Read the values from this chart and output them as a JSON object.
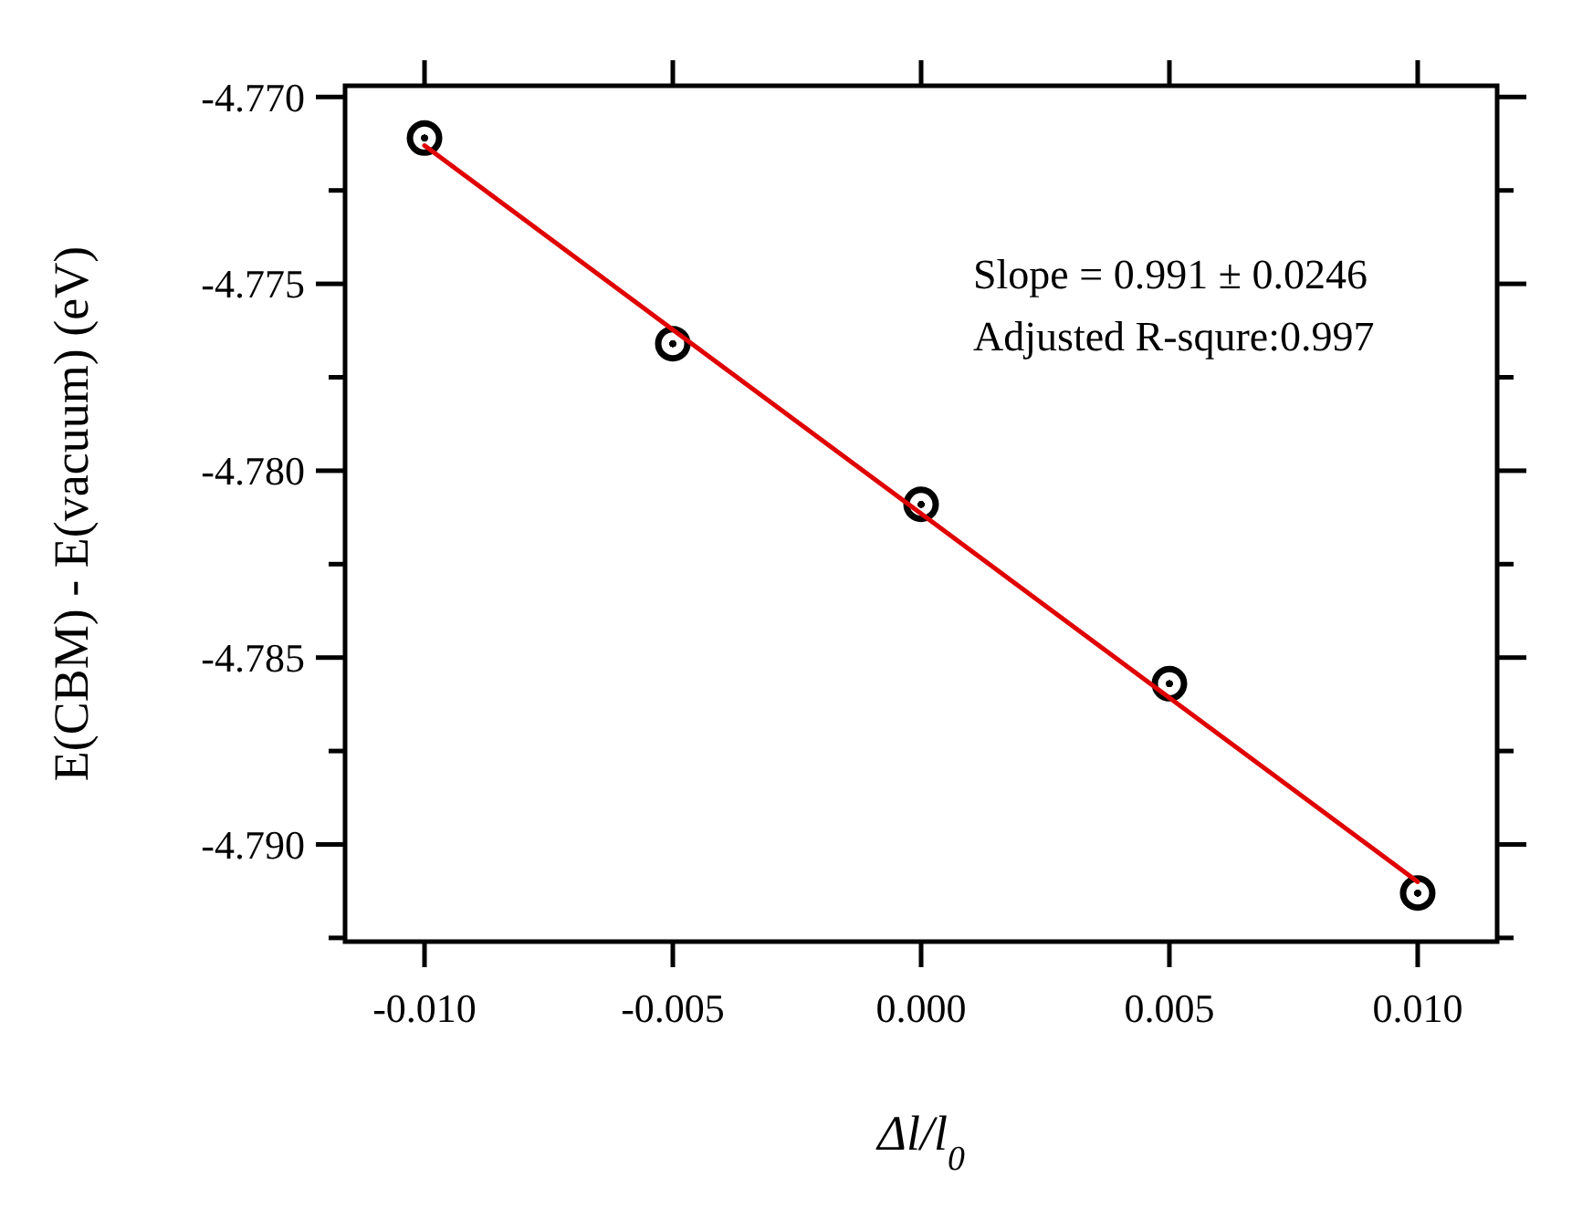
{
  "chart_data": {
    "type": "scatter",
    "xlabel": "Δl/l$_{0}$",
    "ylabel": "E(CBM) - E(vacuum) (eV)",
    "x": [
      -0.01,
      -0.005,
      0,
      0.005,
      0.01
    ],
    "series": [
      {
        "color": "#000000",
        "values": [
          -4.7711,
          -4.7766,
          -4.7809,
          -4.7857,
          -4.7913
        ]
      },
      {
        "type": "line",
        "marker": "none",
        "color": "#e00000",
        "x": [
          -0.01,
          0.01
        ],
        "values": [
          -4.7713,
          -4.791
        ]
      }
    ],
    "marker": "circle",
    "xlim": [
      -0.0116,
      0.0116
    ],
    "xticks": [
      {
        "value": -0.01,
        "label": "-0.010"
      },
      {
        "value": -0.005,
        "label": "-0.005"
      },
      {
        "value": 0,
        "label": "0.000"
      },
      {
        "value": 0.005,
        "label": "0.005"
      },
      {
        "value": 0.01,
        "label": "0.010"
      }
    ],
    "ylim": [
      -4.7926,
      -4.7697
    ],
    "yticks": [
      {
        "value": -4.77,
        "label": "-4.770"
      },
      {
        "value": -4.7725,
        "label": null
      },
      {
        "value": -4.775,
        "label": "-4.775"
      },
      {
        "value": -4.7775,
        "label": null
      },
      {
        "value": -4.78,
        "label": "-4.780"
      },
      {
        "value": -4.7825,
        "label": null
      },
      {
        "value": -4.785,
        "label": "-4.785"
      },
      {
        "value": -4.7875,
        "label": null
      },
      {
        "value": -4.79,
        "label": "-4.790"
      },
      {
        "value": -4.7925,
        "label": null
      }
    ],
    "annotations": [
      "Slope = 0.991 ± 0.0246",
      "Adjusted R-squre:0.997"
    ],
    "grid": false
  }
}
